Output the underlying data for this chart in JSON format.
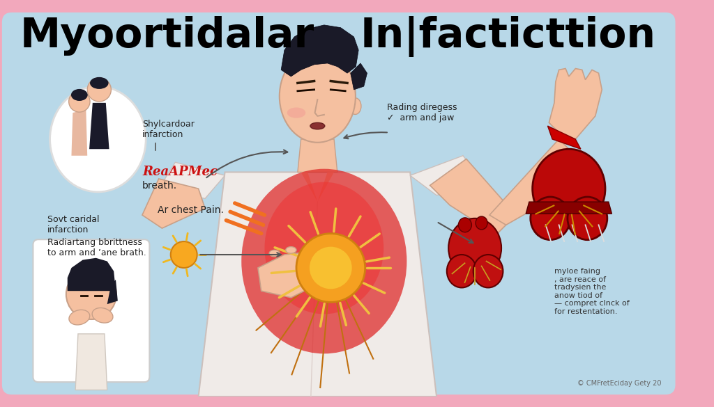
{
  "title_left": "Myoortidalar",
  "title_right": "In|facticttion",
  "bg_outer": "#f2a8bc",
  "bg_inner": "#b8d8e8",
  "symptom1": "Shylcardoar\ninfarction",
  "symptom2": "Sovt caridal\ninfarction",
  "symptom3_line1": "ReaAPMec",
  "symptom3_line2": "breath.",
  "symptom4": "Ar chest Pain.",
  "symptom5": "Rading diregess\n✓  arm and jaw",
  "symptom6": "Radiartang bbrittness\nto arm and ’ane brath.",
  "side_text": "myloe faing\n, are reace of\ntradysien the\nanow tiod of\n— compret clnck of\nfor restentation.",
  "copyright": "© CMFretEciday Gety 20",
  "skin_color": "#f5c0a0",
  "skin_shadow": "#e8a888",
  "shirt_color": "#f0ebe8",
  "shirt_shadow": "#ddd0cc",
  "chest_red": "#e03030",
  "sun_orange": "#f5a020",
  "sun_yellow": "#f0c040",
  "heart_red": "#c01010",
  "arrow_color": "#555555",
  "hair_color": "#1a1a28",
  "orange_line_color": "#f07020",
  "annotation_fontsize": 9,
  "title_fontsize": 42,
  "circle_bg": "#ffffff",
  "red_text_color": "#cc1111"
}
